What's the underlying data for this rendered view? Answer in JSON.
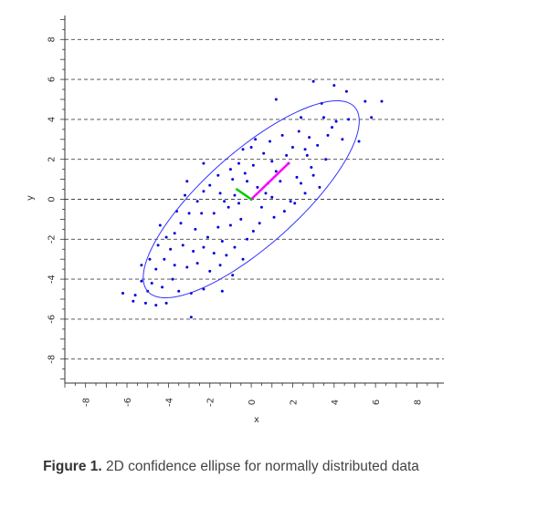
{
  "chart_data": {
    "type": "scatter",
    "xlabel": "x",
    "ylabel": "y",
    "xlim": [
      -9,
      9.3
    ],
    "ylim": [
      -9.2,
      9.2
    ],
    "xticks": [
      -8,
      -6,
      -4,
      -2,
      0,
      2,
      4,
      6,
      8
    ],
    "yticks": [
      -8,
      -6,
      -4,
      -2,
      0,
      2,
      4,
      6,
      8
    ],
    "grid": "horizontal dashed",
    "colors": {
      "points": "#0000dd",
      "ellipse": "#3333ff",
      "major_axis": "#ff00ff",
      "minor_axis": "#00cc00"
    },
    "ellipse": {
      "center": [
        0,
        0
      ],
      "semi_major": 6.8,
      "semi_minor": 2.3,
      "angle_deg": 43
    },
    "eigenvectors": [
      {
        "from": [
          0,
          0
        ],
        "to": [
          1.8,
          1.8
        ],
        "color": "#ff00ff"
      },
      {
        "from": [
          0,
          0
        ],
        "to": [
          -0.7,
          0.5
        ],
        "color": "#00cc00"
      }
    ],
    "points": [
      [
        1.2,
        5.0
      ],
      [
        3.0,
        5.9
      ],
      [
        4.0,
        5.7
      ],
      [
        5.5,
        4.9
      ],
      [
        6.3,
        4.9
      ],
      [
        5.8,
        4.1
      ],
      [
        4.6,
        5.4
      ],
      [
        3.4,
        4.8
      ],
      [
        2.4,
        4.1
      ],
      [
        3.9,
        3.6
      ],
      [
        4.4,
        3.0
      ],
      [
        5.2,
        2.9
      ],
      [
        3.6,
        2.0
      ],
      [
        2.9,
        1.6
      ],
      [
        3.3,
        0.6
      ],
      [
        2.6,
        0.3
      ],
      [
        2.0,
        2.6
      ],
      [
        1.5,
        3.2
      ],
      [
        0.9,
        2.9
      ],
      [
        1.8,
        1.8
      ],
      [
        1.2,
        1.4
      ],
      [
        0.8,
        0.8
      ],
      [
        0.3,
        0.6
      ],
      [
        0.1,
        1.7
      ],
      [
        -0.3,
        1.3
      ],
      [
        -0.9,
        1.0
      ],
      [
        -1.0,
        1.5
      ],
      [
        -0.4,
        2.5
      ],
      [
        -1.6,
        1.2
      ],
      [
        -2.0,
        0.7
      ],
      [
        -1.5,
        0.3
      ],
      [
        -2.3,
        0.4
      ],
      [
        -2.6,
        -0.1
      ],
      [
        -1.8,
        -0.7
      ],
      [
        -1.1,
        -0.4
      ],
      [
        -0.6,
        -0.2
      ],
      [
        0.0,
        0.0
      ],
      [
        0.5,
        -0.4
      ],
      [
        1.1,
        -0.9
      ],
      [
        1.6,
        -0.6
      ],
      [
        2.1,
        -0.2
      ],
      [
        -3.1,
        0.9
      ],
      [
        -3.0,
        -0.7
      ],
      [
        -3.4,
        -1.2
      ],
      [
        -2.7,
        -1.5
      ],
      [
        -2.1,
        -1.9
      ],
      [
        -1.6,
        -1.4
      ],
      [
        -1.0,
        -1.3
      ],
      [
        -0.5,
        -1.0
      ],
      [
        0.1,
        -1.6
      ],
      [
        -3.7,
        -1.7
      ],
      [
        -4.1,
        -1.9
      ],
      [
        -3.3,
        -2.3
      ],
      [
        -2.8,
        -2.6
      ],
      [
        -2.3,
        -2.4
      ],
      [
        -1.8,
        -2.7
      ],
      [
        -1.4,
        -2.1
      ],
      [
        -4.5,
        -2.3
      ],
      [
        -4.2,
        -3.0
      ],
      [
        -3.7,
        -3.3
      ],
      [
        -3.1,
        -3.4
      ],
      [
        -2.6,
        -3.2
      ],
      [
        -2.0,
        -3.6
      ],
      [
        -4.6,
        -3.5
      ],
      [
        -4.9,
        -3.0
      ],
      [
        -5.3,
        -4.1
      ],
      [
        -4.8,
        -4.2
      ],
      [
        -4.3,
        -4.4
      ],
      [
        -3.8,
        -4.0
      ],
      [
        -5.0,
        -4.6
      ],
      [
        -5.6,
        -4.8
      ],
      [
        -6.2,
        -4.7
      ],
      [
        -5.1,
        -5.2
      ],
      [
        -4.6,
        -5.3
      ],
      [
        -4.1,
        -5.2
      ],
      [
        -1.4,
        -4.6
      ],
      [
        -2.9,
        -5.9
      ],
      [
        -2.3,
        -4.5
      ],
      [
        -1.5,
        -3.3
      ],
      [
        -0.8,
        -2.4
      ],
      [
        -0.2,
        -2.0
      ],
      [
        0.4,
        -1.2
      ],
      [
        1.0,
        0.1
      ],
      [
        1.4,
        0.9
      ],
      [
        2.2,
        1.1
      ],
      [
        2.7,
        2.2
      ],
      [
        3.2,
        2.7
      ],
      [
        3.7,
        3.2
      ],
      [
        4.1,
        3.9
      ],
      [
        2.8,
        3.1
      ],
      [
        2.3,
        3.4
      ],
      [
        1.7,
        2.2
      ],
      [
        0.6,
        2.3
      ],
      [
        -0.2,
        0.9
      ],
      [
        -0.8,
        0.2
      ],
      [
        -1.3,
        -0.1
      ],
      [
        1.9,
        -0.1
      ],
      [
        2.4,
        0.8
      ],
      [
        3.0,
        1.2
      ],
      [
        0.2,
        3.0
      ],
      [
        0.0,
        2.6
      ],
      [
        -0.6,
        1.8
      ],
      [
        -2.3,
        1.8
      ],
      [
        -3.2,
        0.2
      ],
      [
        -3.6,
        -0.6
      ],
      [
        -2.4,
        -0.7
      ],
      [
        -1.2,
        -2.8
      ],
      [
        -0.4,
        -3.0
      ],
      [
        -3.9,
        -2.5
      ],
      [
        -4.4,
        -1.3
      ],
      [
        -5.3,
        -3.3
      ],
      [
        -0.9,
        -3.8
      ],
      [
        0.7,
        0.3
      ],
      [
        1.0,
        1.9
      ],
      [
        2.6,
        2.5
      ],
      [
        3.5,
        4.1
      ],
      [
        4.7,
        4.0
      ],
      [
        -2.9,
        -4.7
      ],
      [
        -3.5,
        -4.6
      ],
      [
        -5.7,
        -5.1
      ]
    ]
  },
  "caption": {
    "lead": "Figure 1.",
    "text": " 2D confidence ellipse for normally distributed data"
  }
}
